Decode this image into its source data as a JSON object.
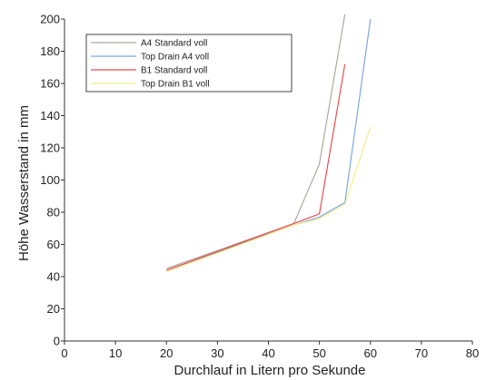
{
  "chart_data": {
    "type": "line",
    "xlabel": "Durchlauf in Litern pro Sekunde",
    "ylabel": "Höhe Wasserstand in mm",
    "xlim": [
      0,
      80
    ],
    "ylim": [
      0,
      200
    ],
    "x_ticks": [
      0,
      10,
      20,
      30,
      40,
      50,
      60,
      70,
      80
    ],
    "y_ticks": [
      0,
      20,
      40,
      60,
      80,
      100,
      120,
      140,
      160,
      180,
      200
    ],
    "grid": false,
    "legend_position": "top-left",
    "series": [
      {
        "name": "A4 Standard voll",
        "color": "#b0a89e",
        "points": [
          [
            20,
            45
          ],
          [
            45,
            73
          ],
          [
            50,
            110
          ],
          [
            55,
            203
          ]
        ]
      },
      {
        "name": "Top Drain A4 voll",
        "color": "#7fa7e0",
        "points": [
          [
            20,
            44
          ],
          [
            45,
            72
          ],
          [
            50,
            77
          ],
          [
            55,
            86
          ],
          [
            60,
            200
          ]
        ]
      },
      {
        "name": "B1 Standard voll",
        "color": "#e84e4e",
        "points": [
          [
            20,
            44
          ],
          [
            45,
            73
          ],
          [
            50,
            79
          ],
          [
            55,
            172
          ]
        ]
      },
      {
        "name": "Top Drain B1 voll",
        "color": "#eef08a",
        "points": [
          [
            20,
            43
          ],
          [
            45,
            72
          ],
          [
            50,
            76
          ],
          [
            55,
            85
          ],
          [
            60,
            133
          ]
        ]
      }
    ]
  }
}
